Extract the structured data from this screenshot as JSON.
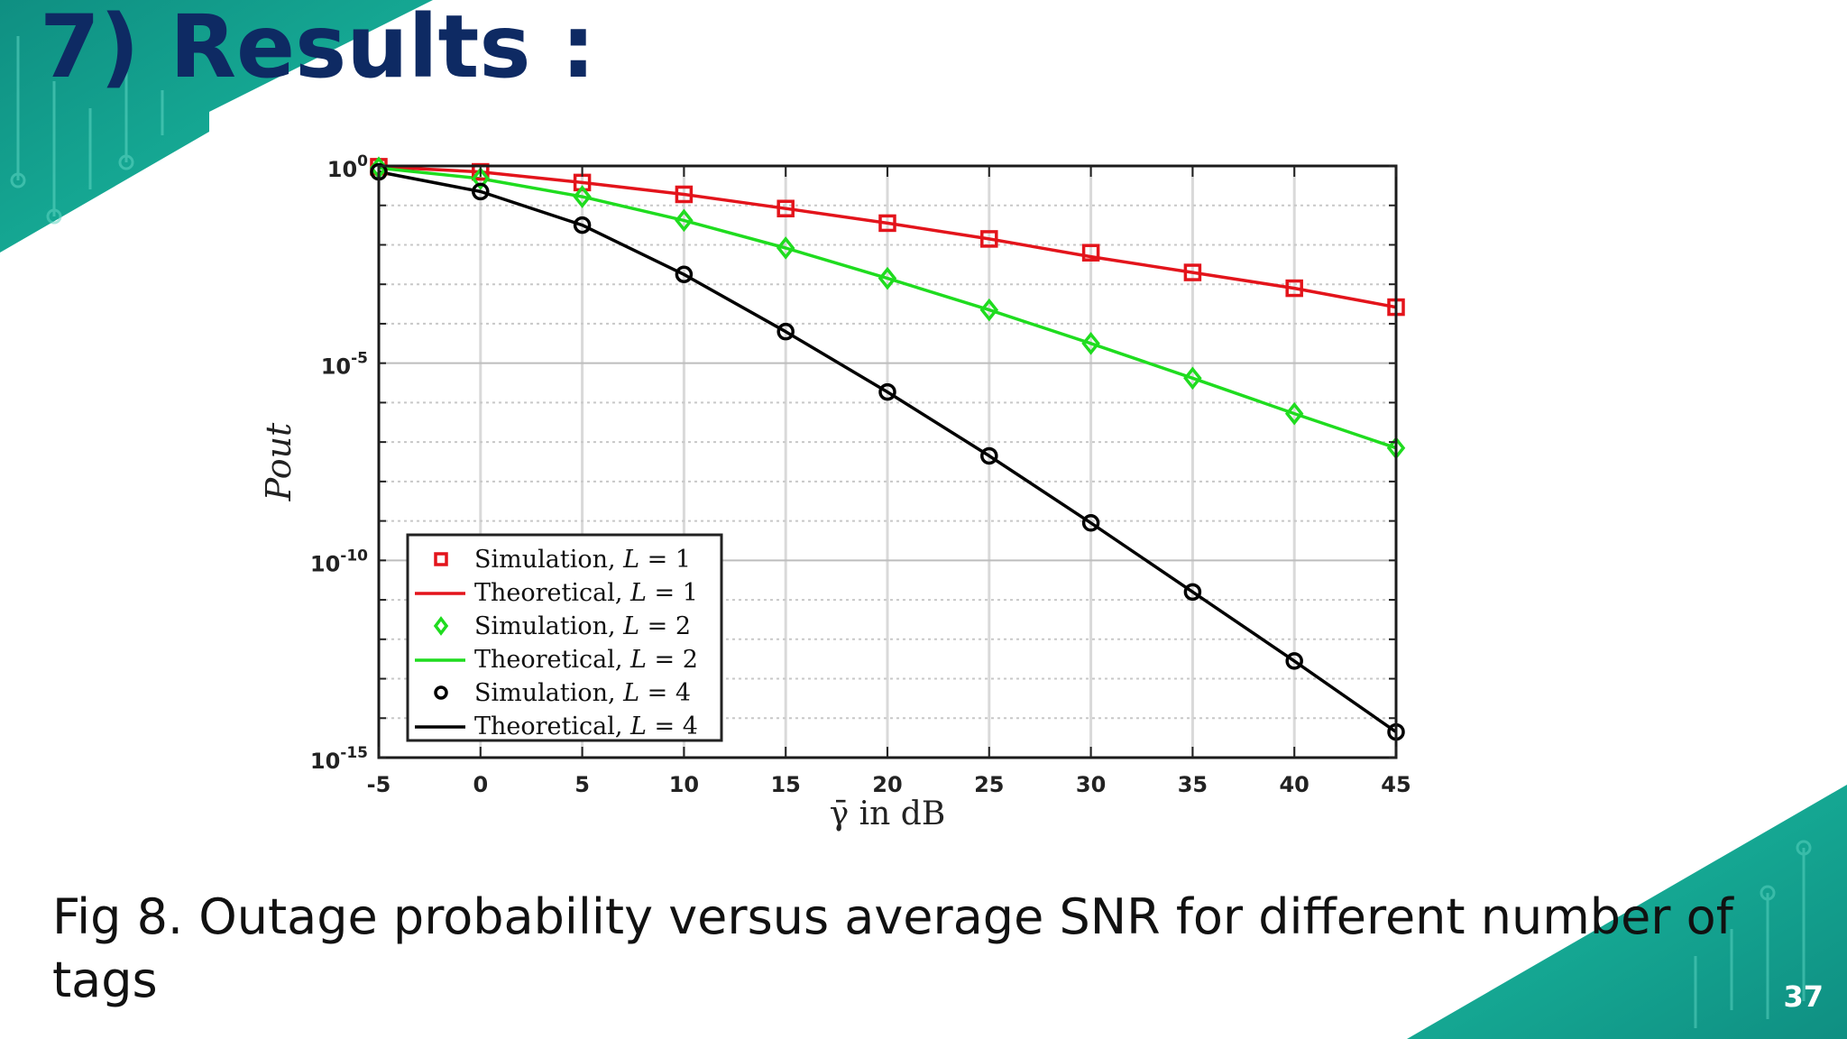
{
  "slide": {
    "title": "7) Results :",
    "caption": "Fig 8. Outage probability versus average SNR for different number of tags",
    "page_number": "37",
    "accent_colors": [
      "#17b39a",
      "#0f8f82"
    ]
  },
  "chart_data": {
    "type": "line",
    "title": "",
    "xlabel": "γ̄ in dB",
    "ylabel": "Pout",
    "xlim": [
      -5,
      45
    ],
    "ylim_log10": [
      -15,
      0
    ],
    "yscale": "log",
    "grid": true,
    "legend_position": "bottom-left",
    "x_ticks": [
      "-5",
      "0",
      "5",
      "10",
      "15",
      "20",
      "25",
      "30",
      "35",
      "40",
      "45"
    ],
    "y_ticks": [
      {
        "base": "10",
        "exp": "0"
      },
      {
        "base": "10",
        "exp": "-5"
      },
      {
        "base": "10",
        "exp": "-10"
      },
      {
        "base": "10",
        "exp": "-15"
      }
    ],
    "x": [
      -5,
      0,
      5,
      10,
      15,
      20,
      25,
      30,
      35,
      40,
      45
    ],
    "series": [
      {
        "name": "Simulation, L = 1",
        "kind": "markers",
        "marker": "square",
        "color": "#e3141b",
        "log10_values": [
          -0.02,
          -0.15,
          -0.42,
          -0.72,
          -1.08,
          -1.45,
          -1.85,
          -2.2,
          -2.7,
          -3.1,
          -3.58
        ]
      },
      {
        "name": "Theoretical, L = 1",
        "kind": "line",
        "color": "#e3141b",
        "log10_values": [
          -0.02,
          -0.15,
          -0.42,
          -0.72,
          -1.08,
          -1.45,
          -1.85,
          -2.3,
          -2.7,
          -3.1,
          -3.58
        ]
      },
      {
        "name": "Simulation, L = 2",
        "kind": "markers",
        "marker": "diamond",
        "color": "#1fdc1f",
        "log10_values": [
          -0.05,
          -0.32,
          -0.78,
          -1.38,
          -2.08,
          -2.85,
          -3.65,
          -4.5,
          -5.38,
          -6.28,
          -7.15
        ]
      },
      {
        "name": "Theoretical, L = 2",
        "kind": "line",
        "color": "#1fdc1f",
        "log10_values": [
          -0.05,
          -0.32,
          -0.78,
          -1.38,
          -2.08,
          -2.85,
          -3.65,
          -4.5,
          -5.38,
          -6.28,
          -7.15
        ]
      },
      {
        "name": "Simulation, L = 4",
        "kind": "markers",
        "marker": "circle",
        "color": "#000000",
        "log10_values": [
          -0.15,
          -0.65,
          -1.5,
          -2.75,
          -4.2,
          -5.73,
          -7.35,
          -9.05,
          -10.8,
          -12.55,
          -14.35
        ]
      },
      {
        "name": "Theoretical, L = 4",
        "kind": "line",
        "color": "#000000",
        "log10_values": [
          -0.15,
          -0.65,
          -1.5,
          -2.75,
          -4.2,
          -5.73,
          -7.35,
          -9.05,
          -10.8,
          -12.55,
          -14.35
        ]
      }
    ],
    "legend_entries": [
      {
        "text": "Simulation, ",
        "var": "L",
        "eq": " = 1",
        "kind": "markers",
        "marker": "square",
        "color": "#e3141b"
      },
      {
        "text": "Theoretical, ",
        "var": "L",
        "eq": " = 1",
        "kind": "line",
        "color": "#e3141b"
      },
      {
        "text": "Simulation, ",
        "var": "L",
        "eq": " = 2",
        "kind": "markers",
        "marker": "diamond",
        "color": "#1fdc1f"
      },
      {
        "text": "Theoretical, ",
        "var": "L",
        "eq": " = 2",
        "kind": "line",
        "color": "#1fdc1f"
      },
      {
        "text": "Simulation, ",
        "var": "L",
        "eq": " = 4",
        "kind": "markers",
        "marker": "circle",
        "color": "#000000"
      },
      {
        "text": "Theoretical, ",
        "var": "L",
        "eq": " = 4",
        "kind": "line",
        "color": "#000000"
      }
    ]
  }
}
